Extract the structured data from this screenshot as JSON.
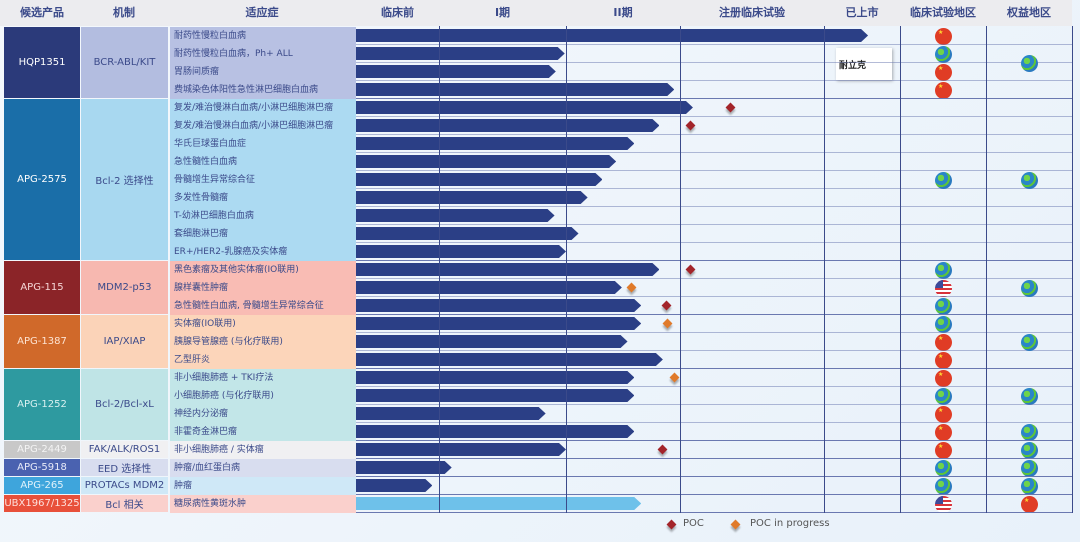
{
  "headers": [
    "候选产品",
    "机制",
    "适应症",
    "临床前",
    "I期",
    "II期",
    "注册临床试验",
    "已上市",
    "临床试验地区",
    "权益地区"
  ],
  "colors": {
    "bar": "#2b3f86",
    "bar_light": "#6ec1ea",
    "poc": "#a3242a",
    "poc_in_progress": "#e07a2a",
    "grid": "#3b4a8a"
  },
  "stage_scale": "0=临床前 start, 1=I期, 2=II期, 3=注册临床试验, 4=已上市, 5=end",
  "logo_text": "耐立克",
  "legend": {
    "poc": "POC",
    "poc_in_progress": "POC in progress"
  },
  "groups": [
    {
      "product": "HQP1351",
      "mechanism": "BCR-ABL/KIT",
      "product_color": "#2b3a7a",
      "product_text": "#ffffff",
      "mech_color": "#b3bde0",
      "ind_color": "#b8c1e3",
      "rights": "globe",
      "indications": [
        {
          "name": "耐药性慢粒白血病",
          "stage": 4.58,
          "clinical": "cn"
        },
        {
          "name": "耐药性慢粒白血病，Ph+ ALL",
          "stage": 1.99,
          "clinical": "globe"
        },
        {
          "name": "胃肠间质瘤",
          "stage": 1.92,
          "clinical": "cn"
        },
        {
          "name": "费城染色体阳性急性淋巴细胞白血病",
          "stage": 2.95,
          "clinical": "cn"
        }
      ]
    },
    {
      "product": "APG-2575",
      "mechanism": "Bcl-2 选择性",
      "product_color": "#1a6ea8",
      "product_text": "#ffffff",
      "mech_color": "#a8d8f0",
      "ind_color": "#acdaf2",
      "clinical": "globe",
      "rights": "globe",
      "indications": [
        {
          "name": "复发/难治慢淋白血病/小淋巴细胞淋巴瘤",
          "stage": 3.09,
          "poc": {
            "at": 3.35,
            "type": "poc"
          }
        },
        {
          "name": "复发/难治慢淋白血病/小淋巴细胞淋巴瘤",
          "stage": 2.82,
          "poc": {
            "at": 3.07,
            "type": "poc"
          }
        },
        {
          "name": "华氏巨球蛋白血症",
          "stage": 2.6
        },
        {
          "name": "急性髓性白血病",
          "stage": 2.44
        },
        {
          "name": "骨髓增生异常综合征",
          "stage": 2.32
        },
        {
          "name": "多发性骨髓瘤",
          "stage": 2.19
        },
        {
          "name": "T-幼淋巴细胞白血病",
          "stage": 1.91
        },
        {
          "name": "套细胞淋巴瘤",
          "stage": 2.11
        },
        {
          "name": "ER+/HER2-乳腺癌及实体瘤",
          "stage": 2.0
        }
      ]
    },
    {
      "product": "APG-115",
      "mechanism": "MDM2-p53",
      "product_color": "#8b2428",
      "product_text": "#f5d6d6",
      "mech_color": "#f7b8b0",
      "ind_color": "#f9bcb4",
      "rights": "globe",
      "indications": [
        {
          "name": "黑色素瘤及其他实体瘤(IO联用)",
          "stage": 2.82,
          "poc": {
            "at": 3.07,
            "type": "poc"
          },
          "clinical": "globe"
        },
        {
          "name": "腺样囊性肿瘤",
          "stage": 2.49,
          "poc": {
            "at": 2.57,
            "type": "in_progress"
          },
          "clinical": "us"
        },
        {
          "name": "急性髓性白血病, 骨髓增生异常综合征",
          "stage": 2.66,
          "poc": {
            "at": 2.88,
            "type": "poc"
          },
          "clinical": "globe"
        }
      ]
    },
    {
      "product": "APG-1387",
      "mechanism": "IAP/XIAP",
      "product_color": "#d0692a",
      "product_text": "#fde3d2",
      "mech_color": "#fbd3b8",
      "ind_color": "#fcd5ba",
      "rights": "globe",
      "indications": [
        {
          "name": "实体瘤(IO联用)",
          "stage": 2.66,
          "poc": {
            "at": 2.89,
            "type": "in_progress"
          },
          "clinical": "globe"
        },
        {
          "name": "胰腺导管腺癌 (与化疗联用)",
          "stage": 2.54,
          "clinical": "cn"
        },
        {
          "name": "乙型肝炎",
          "stage": 2.85,
          "clinical": "cn"
        }
      ]
    },
    {
      "product": "APG-1252",
      "mechanism": "Bcl-2/Bcl-xL",
      "product_color": "#2e9aa0",
      "product_text": "#d8f0f0",
      "mech_color": "#bfe4e6",
      "ind_color": "#c2e6e8",
      "indications": [
        {
          "name": "非小细胞肺癌  + TKI疗法",
          "stage": 2.6,
          "poc": {
            "at": 2.95,
            "type": "in_progress"
          },
          "clinical": "cn"
        },
        {
          "name": "小细胞肺癌 (与化疗联用)",
          "stage": 2.6,
          "clinical": "globe",
          "rights": "globe"
        },
        {
          "name": "神经内分泌瘤",
          "stage": 1.84,
          "clinical": "cn"
        },
        {
          "name": "非霍奇金淋巴瘤",
          "stage": 2.6,
          "clinical": "cn",
          "rights": "globe"
        }
      ]
    },
    {
      "product": "APG-2449",
      "mechanism": "FAK/ALK/ROS1",
      "product_color": "#c8c8c8",
      "product_text": "#f4f4f4",
      "mech_color": "#f0f0f2",
      "ind_color": "#f0f0f2",
      "indications": [
        {
          "name": "非小细胞肺癌 / 实体瘤",
          "stage": 2.0,
          "poc": {
            "at": 2.84,
            "type": "poc"
          },
          "clinical": "cn",
          "rights": "globe"
        }
      ]
    },
    {
      "product": "APG-5918",
      "mechanism": "EED 选择性",
      "product_color": "#4a62b0",
      "product_text": "#e6eaf8",
      "mech_color": "#d8ddef",
      "ind_color": "#d8ddef",
      "indications": [
        {
          "name": "肿瘤/血红蛋白病",
          "stage": 1.1,
          "clinical": "globe",
          "rights": "globe"
        }
      ]
    },
    {
      "product": "APG-265",
      "mechanism": "PROTACs MDM2",
      "product_color": "#3ea5dc",
      "product_text": "#e0f2fb",
      "mech_color": "#cfe8f7",
      "ind_color": "#cfe8f7",
      "indications": [
        {
          "name": "肿瘤",
          "stage": 0.92,
          "clinical": "globe",
          "rights": "globe"
        }
      ]
    },
    {
      "product": "UBX1967/1325",
      "mechanism": "Bcl 相关",
      "product_color": "#e8503a",
      "product_text": "#fde0dc",
      "mech_color": "#fad0cc",
      "ind_color": "#fad0cc",
      "light_bar": true,
      "indications": [
        {
          "name": "糖尿病性黄斑水肿",
          "stage": 2.66,
          "clinical": "us",
          "rights": "cn"
        }
      ]
    }
  ]
}
